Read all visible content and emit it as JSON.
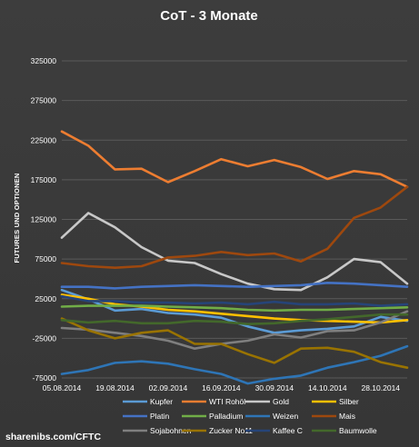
{
  "chart_data": {
    "type": "line",
    "title": "CoT - 3 Monate",
    "ylabel": "FUTURES UND OPTIONEN",
    "xlabel": "",
    "source": "sharenibs.com/CFTC",
    "ylim": [
      -75000,
      325000
    ],
    "yticks": [
      325000,
      275000,
      225000,
      175000,
      125000,
      75000,
      25000,
      -25000,
      -75000
    ],
    "ytick_labels": [
      "325000",
      "275000",
      "225000",
      "175000",
      "125000",
      "75000",
      "25000",
      "-25000",
      "-75000"
    ],
    "x": [
      "05.08.2014",
      "12.08.2014",
      "19.08.2014",
      "26.08.2014",
      "02.09.2014",
      "09.09.2014",
      "16.09.2014",
      "23.09.2014",
      "30.09.2014",
      "07.10.2014",
      "14.10.2014",
      "21.10.2014",
      "28.10.2014",
      "04.11.2014"
    ],
    "xtick_labels": [
      "05.08.2014",
      "19.08.2014",
      "02.09.2014",
      "16.09.2014",
      "30.09.2014",
      "14.10.2014",
      "28.10.2014"
    ],
    "grid": true,
    "legend_position": "bottom",
    "series": [
      {
        "name": "Kupfer",
        "color": "#5b9bd5",
        "values": [
          36000,
          24000,
          10000,
          12000,
          7000,
          5000,
          1000,
          -10000,
          -18000,
          -15000,
          -13000,
          -10000,
          2000,
          -3000
        ]
      },
      {
        "name": "WTI Rohöl",
        "color": "#ed7d31",
        "values": [
          236000,
          218000,
          188000,
          189000,
          172000,
          186000,
          201000,
          192000,
          200000,
          191000,
          176000,
          186000,
          182000,
          166000
        ]
      },
      {
        "name": "Gold",
        "color": "#c8c8c8",
        "values": [
          102000,
          133000,
          115000,
          90000,
          73000,
          70000,
          56000,
          44000,
          37000,
          36000,
          52000,
          75000,
          71000,
          44000
        ]
      },
      {
        "name": "Silber",
        "color": "#ffc000",
        "values": [
          30000,
          25000,
          18000,
          15000,
          11000,
          9000,
          6000,
          3000,
          0,
          -2000,
          -3000,
          -4000,
          -5000,
          -2000
        ]
      },
      {
        "name": "Platin",
        "color": "#4472c4",
        "values": [
          40000,
          40000,
          38000,
          40000,
          41000,
          42000,
          41000,
          40000,
          41000,
          42000,
          45000,
          44000,
          42000,
          40000
        ]
      },
      {
        "name": "Palladium",
        "color": "#70ad47",
        "values": [
          15000,
          16000,
          16000,
          16000,
          15000,
          14000,
          13000,
          11000,
          10000,
          11000,
          11000,
          12000,
          13000,
          14000
        ]
      },
      {
        "name": "Weizen",
        "color": "#2e75b6",
        "values": [
          -70000,
          -65000,
          -56000,
          -54000,
          -57000,
          -64000,
          -70000,
          -82000,
          -76000,
          -72000,
          -62000,
          -55000,
          -47000,
          -35000
        ]
      },
      {
        "name": "Mais",
        "color": "#9e480e",
        "values": [
          70000,
          66000,
          64000,
          66000,
          77000,
          79000,
          84000,
          80000,
          82000,
          72000,
          88000,
          127000,
          140000,
          166000
        ]
      },
      {
        "name": "Sojabohnen",
        "color": "#7f7f7f",
        "values": [
          -12000,
          -14000,
          -18000,
          -22000,
          -28000,
          -38000,
          -32000,
          -28000,
          -20000,
          -24000,
          -16000,
          -15000,
          -5000,
          9000
        ]
      },
      {
        "name": "Zucker No11",
        "color": "#997300",
        "values": [
          0,
          -15000,
          -25000,
          -18000,
          -15000,
          -32000,
          -32000,
          -45000,
          -56000,
          -38000,
          -37000,
          -42000,
          -55000,
          -62000
        ]
      },
      {
        "name": "Kaffee C",
        "color": "#264478",
        "values": [
          28000,
          22000,
          22000,
          20000,
          20000,
          19000,
          20000,
          18000,
          21000,
          18000,
          18000,
          19000,
          16000,
          18000
        ]
      },
      {
        "name": "Baumwolle",
        "color": "#43682b",
        "values": [
          -2000,
          -5000,
          -3000,
          -6000,
          -6000,
          -3000,
          -4000,
          -7000,
          -6000,
          -3000,
          -1000,
          2000,
          5000,
          5000
        ]
      }
    ]
  }
}
